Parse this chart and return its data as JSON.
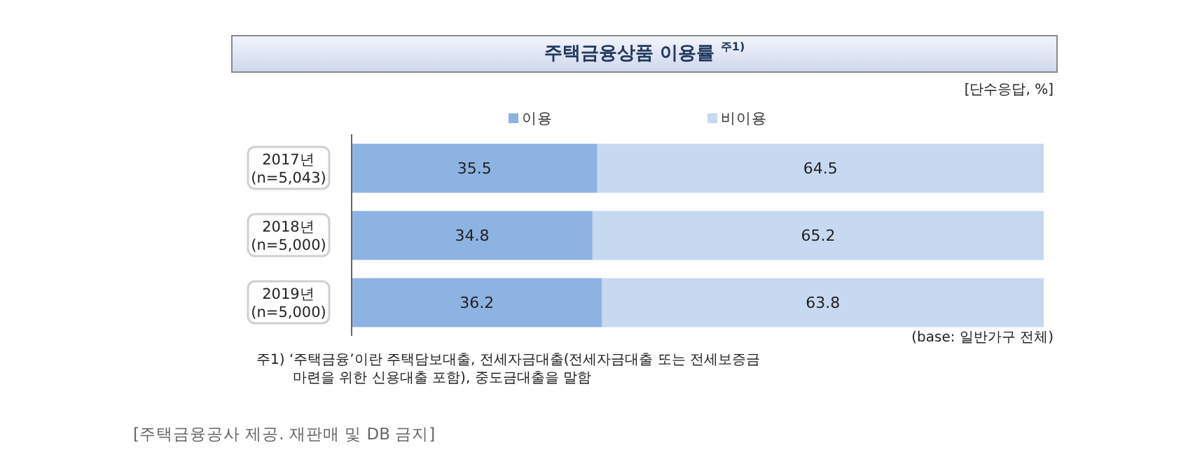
{
  "chart_data": {
    "type": "bar",
    "orientation": "horizontal",
    "stacked": true,
    "title": "주택금융상품 이용률 $^{주1)}$",
    "subtitle": "[단수응답, %]",
    "categories": [
      "2017년\n(n=5,043)",
      "2018년\n(n=5,000)",
      "2019년\n(n=5,000)"
    ],
    "series": [
      {
        "name": "이용",
        "color": "#8db3e2",
        "values": [
          35.5,
          34.8,
          36.2
        ]
      },
      {
        "name": "비이용",
        "color": "#c6d9f1",
        "values": [
          64.5,
          65.2,
          63.8
        ]
      }
    ],
    "xlim": [
      0,
      100
    ],
    "tick_labels": "y",
    "data_labels": true,
    "legend": "top",
    "grid": false,
    "annotations": [
      "(base: 일반가구 전체)",
      "주1) ‘주택금융’이란 주택담보대출, 전세자금대출(전세자금대출 또는 전세보증금 마련을 위한 신용대출 포함), 중도금대출을 말함",
      "[주택금융공사 제공. 재판매 및 DB 금지]"
    ]
  }
}
